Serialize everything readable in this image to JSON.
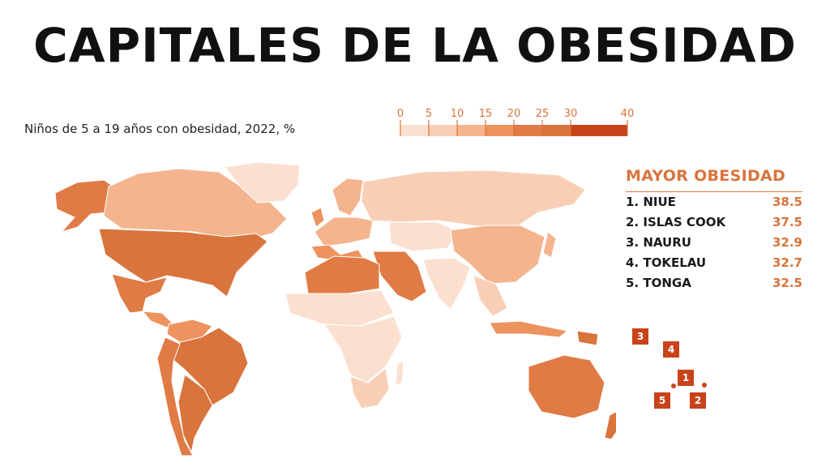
{
  "header": {
    "title": "CAPITALES DE LA OBESIDAD",
    "subtitle": "Niños de 5 a 19 años con obesidad, 2022, %"
  },
  "legend": {
    "ticks": [
      "0",
      "5",
      "10",
      "15",
      "20",
      "25",
      "30",
      "40"
    ],
    "tick_values": [
      0,
      5,
      10,
      15,
      20,
      25,
      30,
      40
    ],
    "bins": [
      {
        "from": 0,
        "to": 5,
        "color": "#fbe0d0"
      },
      {
        "from": 5,
        "to": 10,
        "color": "#f8cfb6"
      },
      {
        "from": 10,
        "to": 15,
        "color": "#f4b48e"
      },
      {
        "from": 15,
        "to": 20,
        "color": "#ec935f"
      },
      {
        "from": 20,
        "to": 25,
        "color": "#e07b45"
      },
      {
        "from": 25,
        "to": 30,
        "color": "#d9743c"
      },
      {
        "from": 30,
        "to": 40,
        "color": "#c9431a"
      }
    ]
  },
  "ranking": {
    "title": "MAYOR OBESIDAD",
    "items": [
      {
        "label": "1. NIUE",
        "value": "38.5"
      },
      {
        "label": "2. ISLAS COOK",
        "value": "37.5"
      },
      {
        "label": "3. NAURU",
        "value": "32.9"
      },
      {
        "label": "4. TOKELAU",
        "value": "32.7"
      },
      {
        "label": "5. TONGA",
        "value": "32.5"
      }
    ]
  },
  "markers": [
    "3",
    "4",
    "1",
    "5",
    "2"
  ],
  "colors": {
    "accent": "#d9743c",
    "marker": "#c9431a",
    "very_light": "#fbe0d0",
    "light": "#f8cfb6",
    "medium_light": "#f4b48e",
    "medium": "#ec935f",
    "medium_dark": "#e07b45",
    "dark": "#d9743c",
    "darkest": "#c9431a",
    "border": "#ffffff"
  }
}
